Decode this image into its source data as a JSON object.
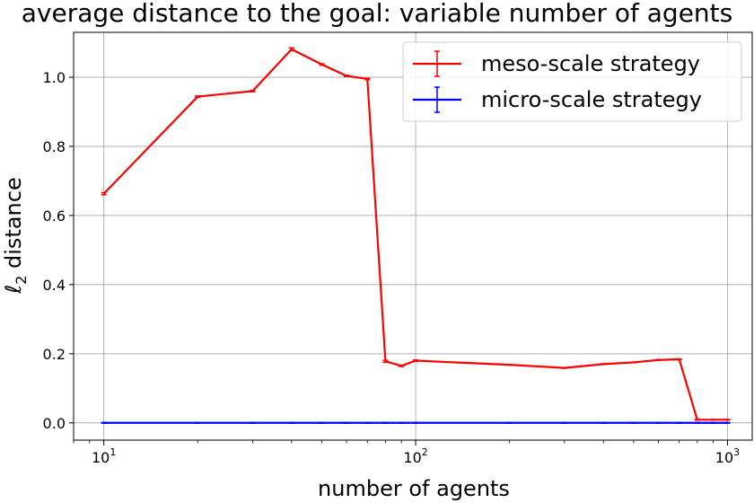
{
  "chart_data": {
    "type": "line",
    "title": "average distance to the goal: variable number of agents",
    "xlabel": "number of agents",
    "ylabel": "ℓ2 distance",
    "ylabel_main": "ℓ",
    "ylabel_sub": "2",
    "ylabel_rest": " distance",
    "xscale": "log",
    "xlim": [
      8,
      1200
    ],
    "ylim": [
      -0.05,
      1.13
    ],
    "x_ticks": [
      {
        "value": 10,
        "base": "10",
        "exp": "1"
      },
      {
        "value": 100,
        "base": "10",
        "exp": "2"
      },
      {
        "value": 1000,
        "base": "10",
        "exp": "3"
      }
    ],
    "y_ticks": [
      {
        "value": 0.0,
        "label": "0.0"
      },
      {
        "value": 0.2,
        "label": "0.2"
      },
      {
        "value": 0.4,
        "label": "0.4"
      },
      {
        "value": 0.6,
        "label": "0.6"
      },
      {
        "value": 0.8,
        "label": "0.8"
      },
      {
        "value": 1.0,
        "label": "1.0"
      }
    ],
    "grid": true,
    "legend_position": "top-right",
    "series": [
      {
        "name": "meso-scale strategy",
        "color": "#ff0000",
        "x": [
          10,
          20,
          30,
          40,
          50,
          60,
          70,
          80,
          90,
          100,
          200,
          300,
          400,
          500,
          600,
          700,
          800,
          900,
          1000
        ],
        "y": [
          0.663,
          0.944,
          0.96,
          1.081,
          1.037,
          1.004,
          0.995,
          0.178,
          0.165,
          0.18,
          0.168,
          0.159,
          0.17,
          0.175,
          0.182,
          0.184,
          0.009,
          0.009,
          0.009
        ],
        "err": [
          0.003,
          0.002,
          0.002,
          0.004,
          0.002,
          0.002,
          0.002,
          0.003,
          0.002,
          0.002,
          0.001,
          0.001,
          0.001,
          0.001,
          0.001,
          0.001,
          0.001,
          0.001,
          0.001
        ]
      },
      {
        "name": "micro-scale strategy",
        "color": "#0000ff",
        "x": [
          10,
          20,
          30,
          40,
          50,
          60,
          70,
          80,
          90,
          100,
          200,
          300,
          400,
          500,
          600,
          700,
          800,
          900,
          1000
        ],
        "y": [
          0,
          0,
          0,
          0,
          0,
          0,
          0,
          0,
          0,
          0,
          0,
          0,
          0,
          0,
          0,
          0,
          0,
          0,
          0
        ],
        "err": [
          0.001,
          0.001,
          0.001,
          0.001,
          0.001,
          0.001,
          0.001,
          0.001,
          0.001,
          0.001,
          0.001,
          0.001,
          0.001,
          0.001,
          0.001,
          0.001,
          0.001,
          0.001,
          0.001
        ]
      }
    ]
  }
}
